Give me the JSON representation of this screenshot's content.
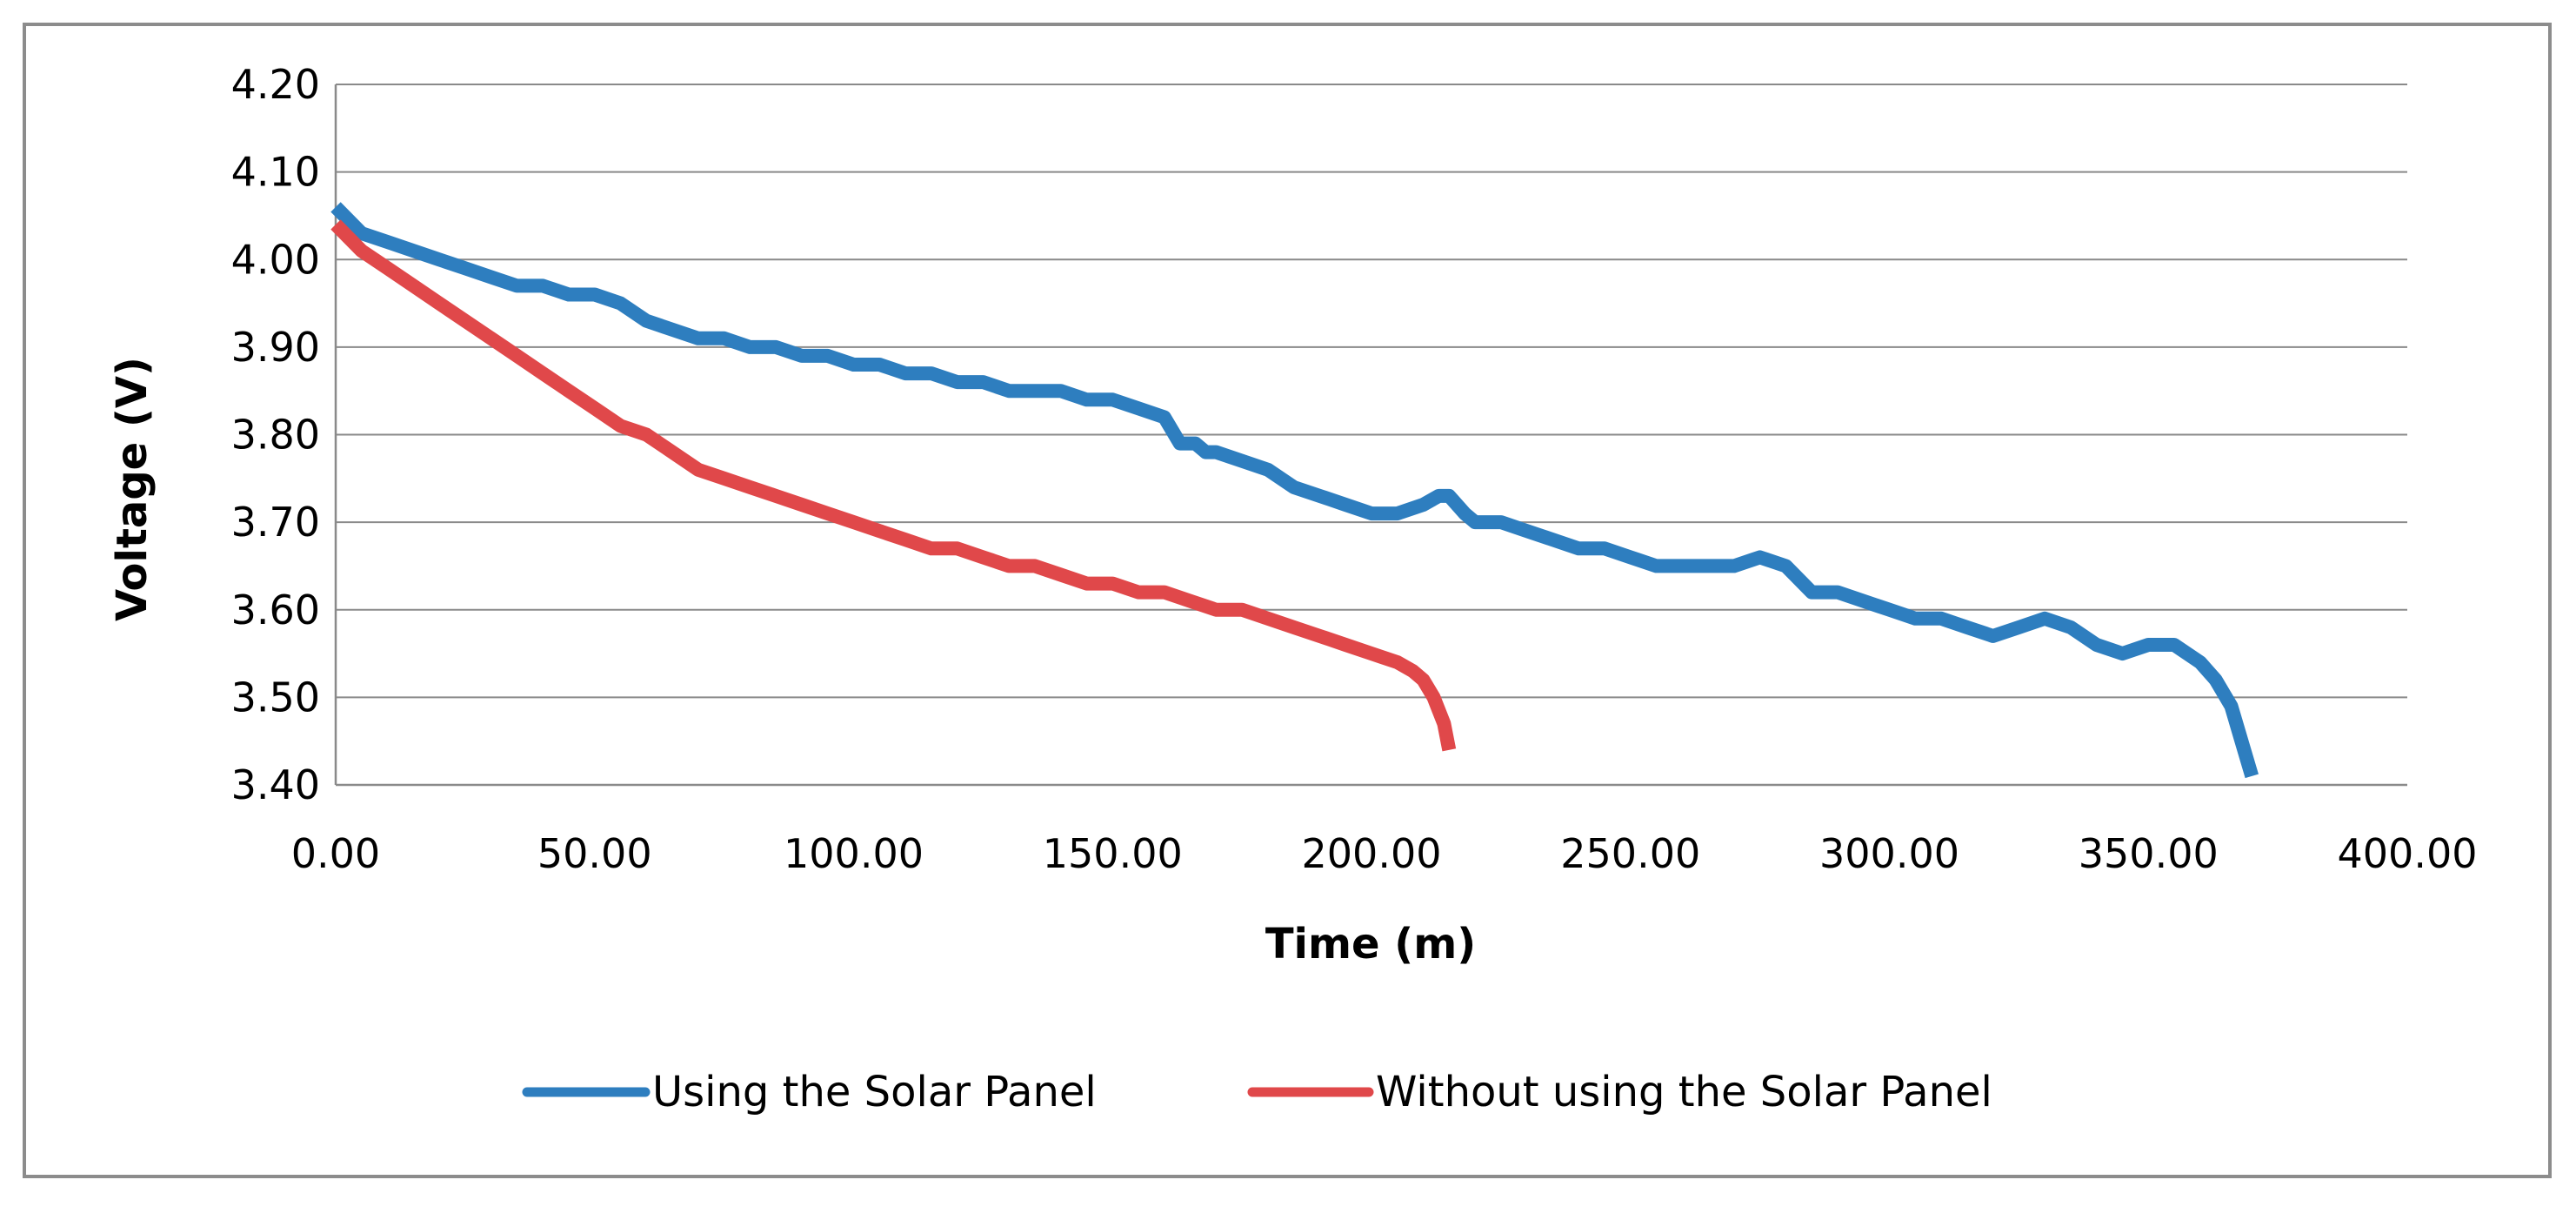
{
  "chart_data": {
    "type": "line",
    "title": "",
    "xlabel": "Time (m)",
    "ylabel": "Voltage (V)",
    "xlim": [
      0,
      400
    ],
    "ylim": [
      3.4,
      4.2
    ],
    "xticks": [
      0,
      50,
      100,
      150,
      200,
      250,
      300,
      350,
      400
    ],
    "yticks": [
      3.4,
      3.5,
      3.6,
      3.7,
      3.8,
      3.9,
      4.0,
      4.1,
      4.2
    ],
    "xtick_labels": [
      "0.00",
      "50.00",
      "100.00",
      "150.00",
      "200.00",
      "250.00",
      "300.00",
      "350.00",
      "400.00"
    ],
    "ytick_labels": [
      "3.40",
      "3.50",
      "3.60",
      "3.70",
      "3.80",
      "3.90",
      "4.00",
      "4.10",
      "4.20"
    ],
    "grid": "horizontal",
    "legend_position": "bottom",
    "series": [
      {
        "name": "Using the Solar Panel",
        "color": "#2e7ebf",
        "x": [
          0,
          5,
          10,
          15,
          20,
          25,
          30,
          35,
          40,
          45,
          50,
          55,
          60,
          65,
          70,
          75,
          80,
          85,
          90,
          95,
          100,
          105,
          110,
          115,
          120,
          125,
          130,
          135,
          140,
          145,
          150,
          155,
          160,
          163,
          166,
          168,
          170,
          175,
          180,
          185,
          190,
          195,
          200,
          205,
          210,
          213,
          215,
          218,
          220,
          225,
          230,
          235,
          240,
          245,
          250,
          255,
          260,
          265,
          270,
          275,
          280,
          285,
          290,
          295,
          300,
          305,
          310,
          315,
          320,
          325,
          330,
          335,
          340,
          345,
          350,
          355,
          360,
          363,
          366,
          368,
          370
        ],
        "y": [
          4.06,
          4.03,
          4.02,
          4.01,
          4.0,
          3.99,
          3.98,
          3.97,
          3.97,
          3.96,
          3.96,
          3.95,
          3.93,
          3.92,
          3.91,
          3.91,
          3.9,
          3.9,
          3.89,
          3.89,
          3.88,
          3.88,
          3.87,
          3.87,
          3.86,
          3.86,
          3.85,
          3.85,
          3.85,
          3.84,
          3.84,
          3.83,
          3.82,
          3.79,
          3.79,
          3.78,
          3.78,
          3.77,
          3.76,
          3.74,
          3.73,
          3.72,
          3.71,
          3.71,
          3.72,
          3.73,
          3.73,
          3.71,
          3.7,
          3.7,
          3.69,
          3.68,
          3.67,
          3.67,
          3.66,
          3.65,
          3.65,
          3.65,
          3.65,
          3.66,
          3.65,
          3.62,
          3.62,
          3.61,
          3.6,
          3.59,
          3.59,
          3.58,
          3.57,
          3.58,
          3.59,
          3.58,
          3.56,
          3.55,
          3.56,
          3.56,
          3.54,
          3.52,
          3.49,
          3.45,
          3.41
        ]
      },
      {
        "name": "Without using the Solar Panel",
        "color": "#e0484a",
        "x": [
          0,
          5,
          10,
          15,
          20,
          25,
          30,
          35,
          40,
          45,
          50,
          55,
          60,
          65,
          70,
          75,
          80,
          85,
          90,
          95,
          100,
          105,
          110,
          115,
          120,
          125,
          130,
          135,
          140,
          145,
          150,
          155,
          160,
          165,
          170,
          175,
          180,
          185,
          190,
          195,
          200,
          205,
          208,
          210,
          212,
          214,
          215
        ],
        "y": [
          4.04,
          4.01,
          3.99,
          3.97,
          3.95,
          3.93,
          3.91,
          3.89,
          3.87,
          3.85,
          3.83,
          3.81,
          3.8,
          3.78,
          3.76,
          3.75,
          3.74,
          3.73,
          3.72,
          3.71,
          3.7,
          3.69,
          3.68,
          3.67,
          3.67,
          3.66,
          3.65,
          3.65,
          3.64,
          3.63,
          3.63,
          3.62,
          3.62,
          3.61,
          3.6,
          3.6,
          3.59,
          3.58,
          3.57,
          3.56,
          3.55,
          3.54,
          3.53,
          3.52,
          3.5,
          3.47,
          3.44
        ]
      }
    ]
  }
}
